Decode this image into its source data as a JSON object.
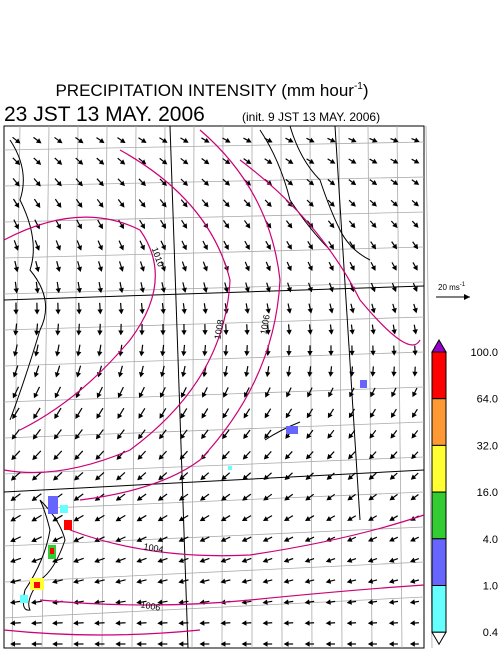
{
  "header": {
    "title": {
      "text": "PRECIPITATION INTENSITY (mm hour",
      "sup": "-1",
      "close": ")"
    },
    "time": "23 JST 13 MAY. 2006",
    "init": "(init. 9 JST 13 MAY. 2006)"
  },
  "wind_scale": {
    "text": "20 ms",
    "sup": "-1"
  },
  "contour_labels": [
    "1010",
    "1008",
    "1006",
    "1004",
    "1006"
  ],
  "colorbar": {
    "levels": [
      "100.0",
      "64.0",
      "32.0",
      "16.0",
      "4.0",
      "1.0",
      "0.4"
    ],
    "colors": [
      "#9900cc",
      "#ff0000",
      "#ff9933",
      "#ffff33",
      "#33cc33",
      "#6666ff",
      "#66ffff",
      "#ffffff"
    ]
  }
}
